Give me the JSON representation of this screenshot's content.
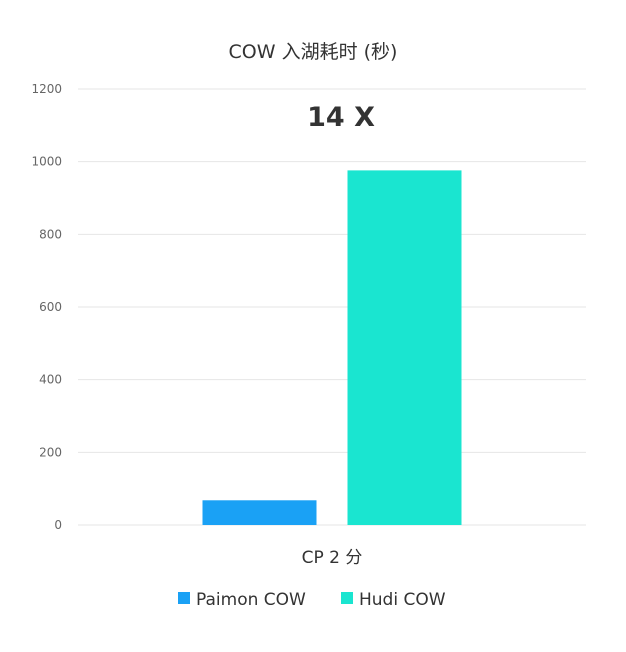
{
  "chart_data": {
    "type": "bar",
    "title": "COW 入湖耗时 (秒)",
    "annotation": "14 X",
    "categories": [
      "CP 2 分"
    ],
    "series": [
      {
        "name": "Paimon COW",
        "values": [
          68
        ],
        "color": "#1aa1f5"
      },
      {
        "name": "Hudi COW",
        "values": [
          976
        ],
        "color": "#1ae5d0"
      }
    ],
    "yticks": [
      "0",
      "200",
      "400",
      "600",
      "800",
      "1000",
      "1200"
    ],
    "ylim": [
      0,
      1200
    ],
    "grid": true,
    "legend_position": "bottom"
  }
}
